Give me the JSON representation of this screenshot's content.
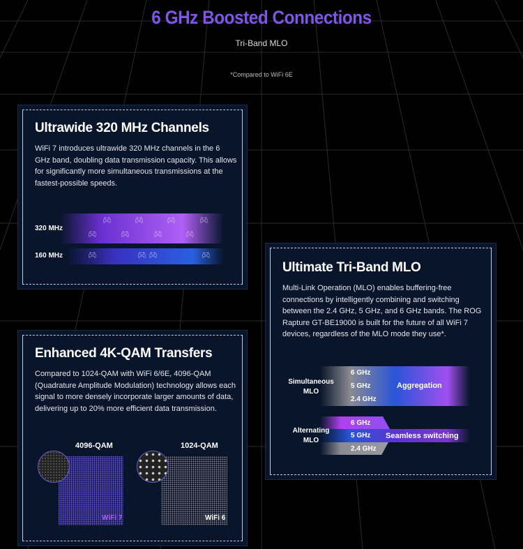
{
  "header": {
    "title": "6 GHz Boosted Connections",
    "subtitle": "Tri-Band MLO",
    "footnote": "*Compared to WiFi 6E"
  },
  "colors": {
    "title": "#7f55e8",
    "card_bg": "#08152a",
    "purple": "#a04df0",
    "blue": "#2a5ae0"
  },
  "cards": [
    {
      "title": "Ultrawide 320 MHz Channels",
      "body": "WiFi 7 introduces ultrawide 320 MHz channels in the 6 GHz band, doubling data transmission capacity. This allows for significantly more simultaneous transmissions at the fastest-possible speeds.",
      "diagram": {
        "row1": "320 MHz",
        "row2": "160 MHz",
        "icon": "gamepad-icon"
      }
    },
    {
      "title": "Ultimate Tri-Band MLO",
      "body": "Multi-Link Operation (MLO) enables buffering-free connections by intelligently combining and switching between the 2.4 GHz, 5 GHz, and 6 GHz bands. The ROG Rapture GT-BE19000 is built for the future of all WiFi 7 devices, regardless of the MLO mode they use*.",
      "diagram": {
        "sim_label": "Simultaneous MLO",
        "alt_label": "Alternating MLO",
        "bands": [
          "6 GHz",
          "5 GHz",
          "2.4 GHz"
        ],
        "aggregation": "Aggregation",
        "switching": "Seamless switching"
      }
    },
    {
      "title": "Enhanced 4K-QAM Transfers",
      "body": "Compared to 1024-QAM with WiFi 6/6E, 4096-QAM (Quadrature Amplitude Modulation) technology allows each signal to more densely incorporate larger amounts of data, delivering up to 20% more efficient data transmission.",
      "diagram": {
        "left_label": "4096-QAM",
        "left_tag": "WiFi 7",
        "right_label": "1024-QAM",
        "right_tag": "WiFi 6"
      }
    }
  ]
}
